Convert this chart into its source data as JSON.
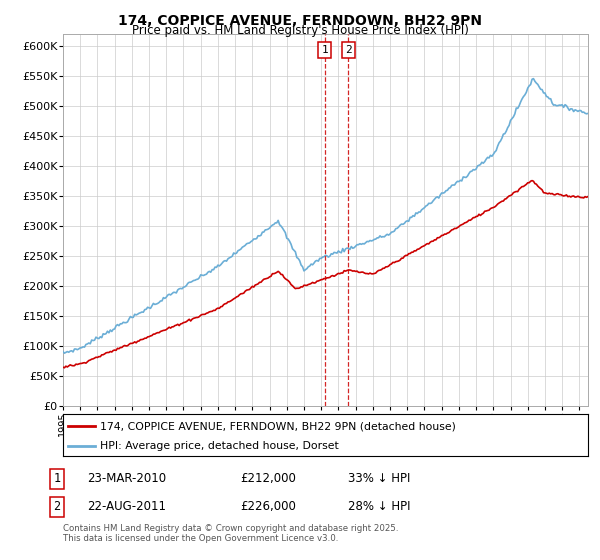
{
  "title": "174, COPPICE AVENUE, FERNDOWN, BH22 9PN",
  "subtitle": "Price paid vs. HM Land Registry's House Price Index (HPI)",
  "ylabel_ticks": [
    "£0",
    "£50K",
    "£100K",
    "£150K",
    "£200K",
    "£250K",
    "£300K",
    "£350K",
    "£400K",
    "£450K",
    "£500K",
    "£550K",
    "£600K"
  ],
  "ytick_values": [
    0,
    50000,
    100000,
    150000,
    200000,
    250000,
    300000,
    350000,
    400000,
    450000,
    500000,
    550000,
    600000
  ],
  "ylim": [
    0,
    620000
  ],
  "hpi_color": "#6baed6",
  "price_color": "#cc0000",
  "marker1_x": 2010.208,
  "marker2_x": 2011.583,
  "marker1_label": "23-MAR-2010",
  "marker2_label": "22-AUG-2011",
  "marker1_price_str": "£212,000",
  "marker2_price_str": "£226,000",
  "marker1_hpi": "33% ↓ HPI",
  "marker2_hpi": "28% ↓ HPI",
  "legend_line1": "174, COPPICE AVENUE, FERNDOWN, BH22 9PN (detached house)",
  "legend_line2": "HPI: Average price, detached house, Dorset",
  "footnote_line1": "Contains HM Land Registry data © Crown copyright and database right 2025.",
  "footnote_line2": "This data is licensed under the Open Government Licence v3.0.",
  "background_color": "#ffffff",
  "grid_color": "#cccccc",
  "xlim_start": 1995.0,
  "xlim_end": 2025.5
}
